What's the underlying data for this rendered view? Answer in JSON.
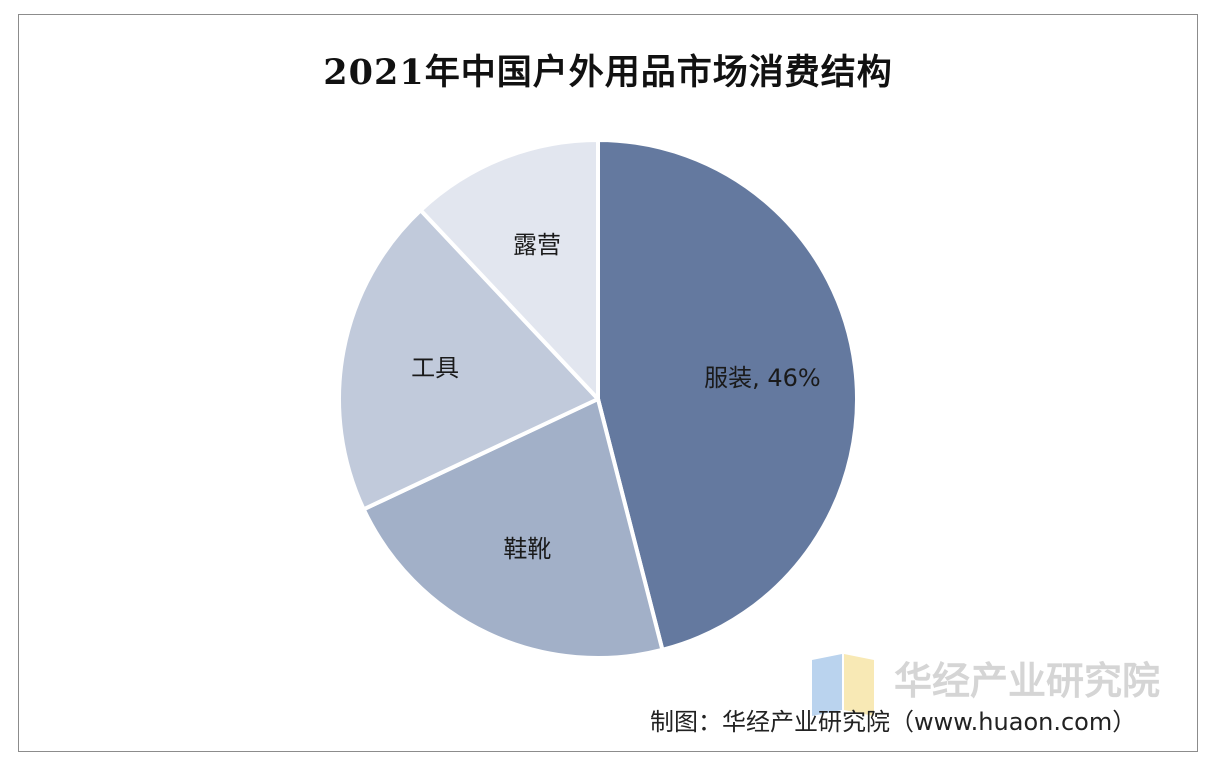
{
  "title": "2021年中国户外用品市场消费结构",
  "chart_data": {
    "type": "pie",
    "title": "2021年中国户外用品市场消费结构",
    "slices": [
      {
        "label": "服装, 46%",
        "value": 46,
        "color": "#64799f"
      },
      {
        "label": "鞋靴",
        "value": 22,
        "color": "#a2b0c8"
      },
      {
        "label": "工具",
        "value": 20,
        "color": "#c1cadb"
      },
      {
        "label": "露营",
        "value": 12,
        "color": "#e2e6ef"
      }
    ]
  },
  "watermark": {
    "text": "华经产业研究院",
    "logo_colors": [
      "#a9c8ea",
      "#f6e3a3"
    ]
  },
  "source": "制图：华经产业研究院（www.huaon.com）"
}
